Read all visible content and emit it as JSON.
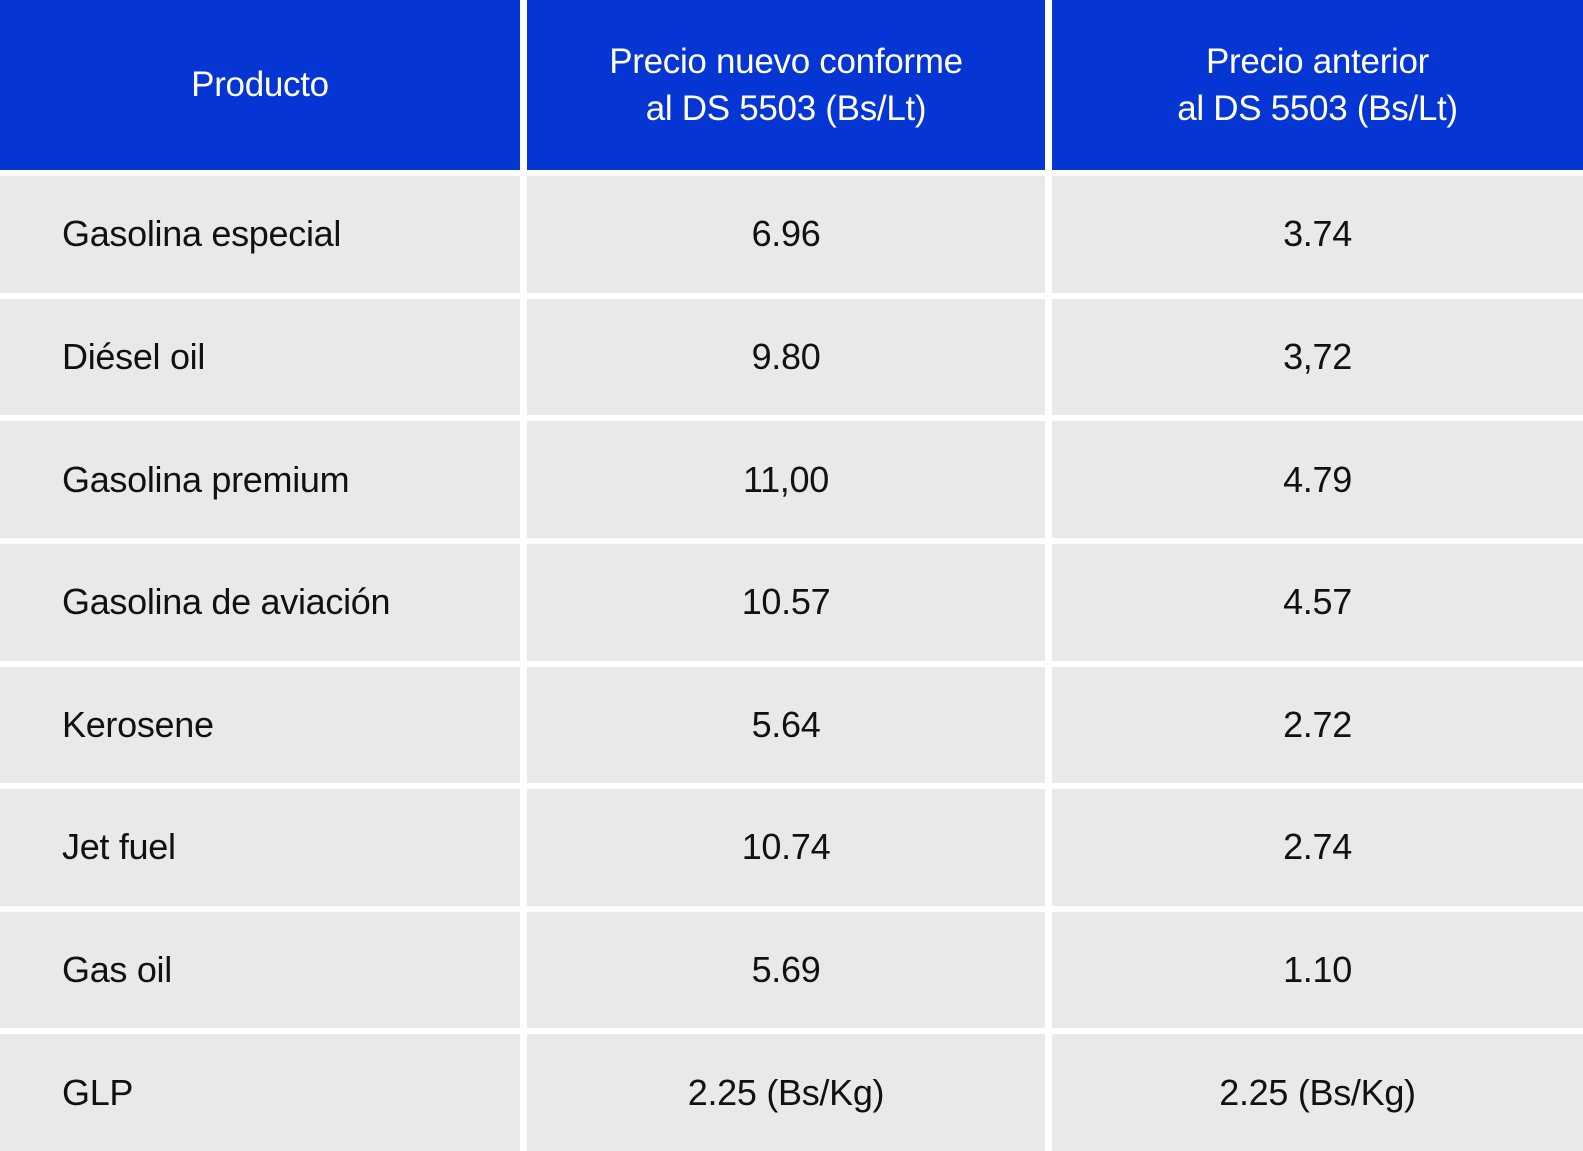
{
  "table": {
    "headers": {
      "producto": "Producto",
      "precio_nuevo": "Precio nuevo conforme\nal DS 5503 (Bs/Lt)",
      "precio_anterior": "Precio anterior\nal DS 5503 (Bs/Lt)"
    },
    "rows": [
      {
        "product": "Gasolina especial",
        "new_price": "6.96",
        "old_price": "3.74"
      },
      {
        "product": "Diésel oil",
        "new_price": "9.80",
        "old_price": "3,72"
      },
      {
        "product": "Gasolina premium",
        "new_price": "11,00",
        "old_price": "4.79"
      },
      {
        "product": "Gasolina de aviación",
        "new_price": "10.57",
        "old_price": "4.57"
      },
      {
        "product": "Kerosene",
        "new_price": "5.64",
        "old_price": "2.72"
      },
      {
        "product": "Jet fuel",
        "new_price": "10.74",
        "old_price": "2.74"
      },
      {
        "product": "Gas oil",
        "new_price": "5.69",
        "old_price": "1.10"
      },
      {
        "product": "GLP",
        "new_price": "2.25 (Bs/Kg)",
        "old_price": "2.25 (Bs/Kg)"
      }
    ]
  },
  "colors": {
    "header_bg": "#0535D2",
    "cell_bg": "#E9E9E9",
    "header_text": "#FFFFFF",
    "body_text": "#111111",
    "separator": "#FFFFFF"
  },
  "chart_data": {
    "type": "table",
    "title": "",
    "columns": [
      "Producto",
      "Precio nuevo conforme al DS 5503 (Bs/Lt)",
      "Precio anterior al DS 5503 (Bs/Lt)"
    ],
    "rows": [
      [
        "Gasolina especial",
        "6.96",
        "3.74"
      ],
      [
        "Diésel oil",
        "9.80",
        "3,72"
      ],
      [
        "Gasolina premium",
        "11,00",
        "4.79"
      ],
      [
        "Gasolina de aviación",
        "10.57",
        "4.57"
      ],
      [
        "Kerosene",
        "5.64",
        "2.72"
      ],
      [
        "Jet fuel",
        "10.74",
        "2.74"
      ],
      [
        "Gas oil",
        "5.69",
        "1.10"
      ],
      [
        "GLP",
        "2.25 (Bs/Kg)",
        "2.25 (Bs/Kg)"
      ]
    ],
    "numeric_values": {
      "new_price_bs": [
        6.96,
        9.8,
        11.0,
        10.57,
        5.64,
        10.74,
        5.69,
        2.25
      ],
      "old_price_bs": [
        3.74,
        3.72,
        4.79,
        4.57,
        2.72,
        2.74,
        1.1,
        2.25
      ],
      "glp_unit": "Bs/Kg",
      "default_unit": "Bs/Lt"
    }
  }
}
